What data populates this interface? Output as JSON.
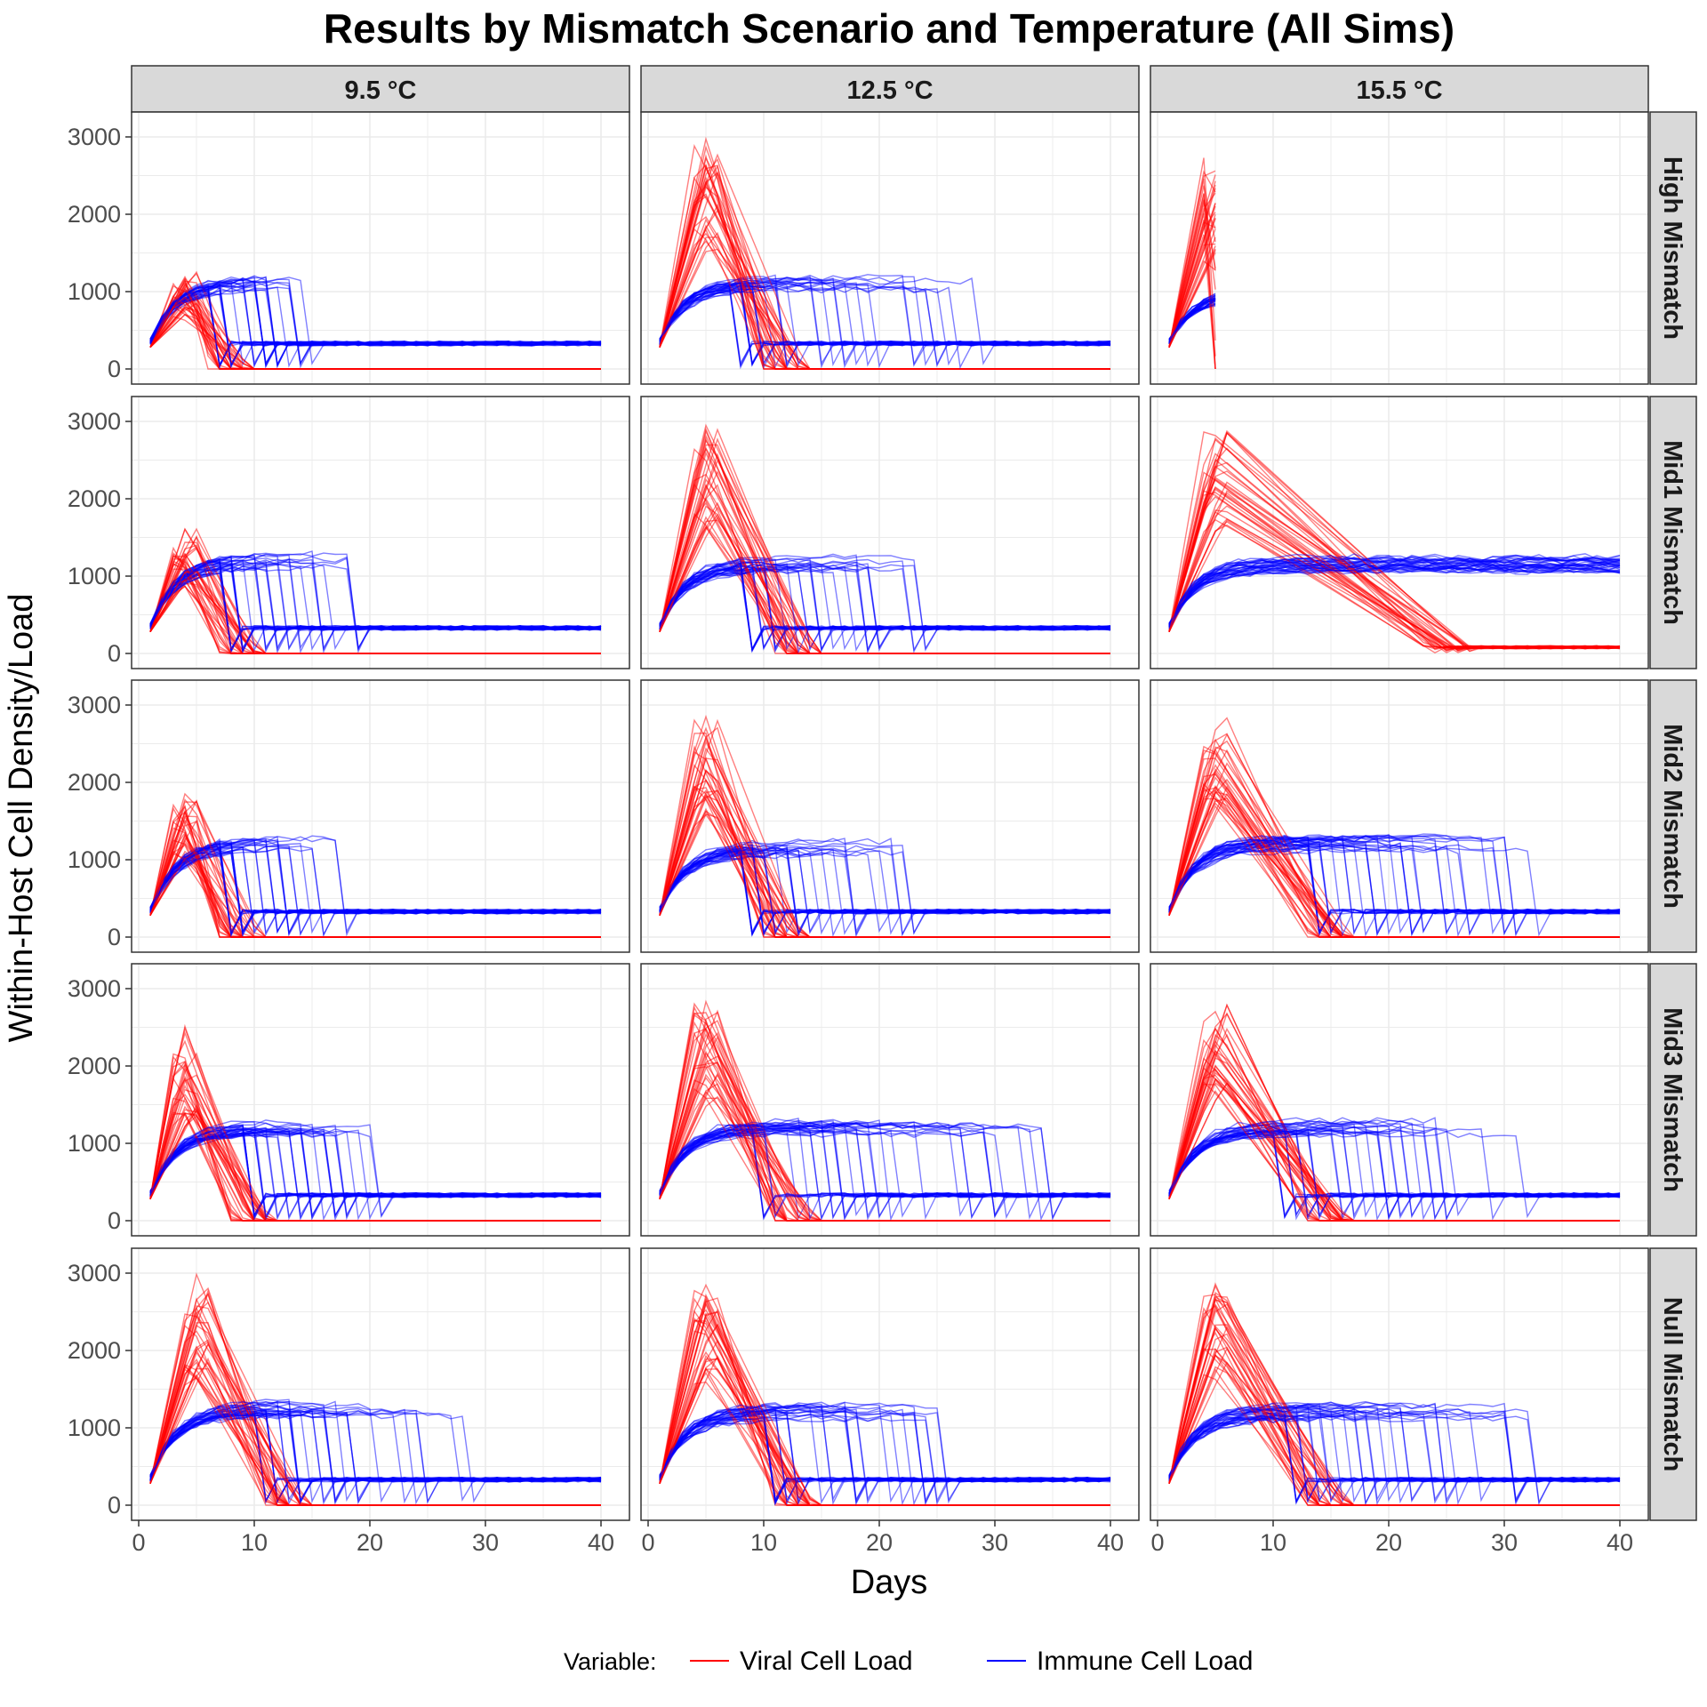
{
  "chart_data": {
    "type": "line",
    "title": "Results by Mismatch Scenario and Temperature (All Sims)",
    "xlabel": "Days",
    "ylabel": "Within-Host Cell Density/Load",
    "xlim": [
      0,
      40
    ],
    "ylim": [
      0,
      3000
    ],
    "x_ticks": [
      "0",
      "10",
      "20",
      "30",
      "40"
    ],
    "y_ticks": [
      "0",
      "1000",
      "2000",
      "3000"
    ],
    "grid": true,
    "legend": {
      "position": "bottom",
      "title": "Variable:",
      "entries": [
        {
          "name": "Viral Cell Load",
          "color": "#ff0000"
        },
        {
          "name": "Immune Cell Load",
          "color": "#0000ff"
        }
      ]
    },
    "columns": [
      "9.5 °C",
      "12.5 °C",
      "15.5 °C"
    ],
    "rows": [
      "High Mismatch",
      "Mid1 Mismatch",
      "Mid2 Mismatch",
      "Mid3 Mismatch",
      "Null Mismatch"
    ],
    "panels": [
      {
        "row": "High Mismatch",
        "col": "9.5 °C",
        "viral_peak": 1300,
        "viral_peak_day": 4,
        "viral_clear_day": 7,
        "immune_peak": 1200,
        "immune_drop_days": [
          6,
          15
        ],
        "immune_baseline": 330,
        "end_day": 40
      },
      {
        "row": "High Mismatch",
        "col": "12.5 °C",
        "viral_peak": 3000,
        "viral_peak_day": 5,
        "viral_clear_day": 11,
        "immune_peak": 1200,
        "immune_drop_days": [
          7,
          30
        ],
        "immune_baseline": 330,
        "end_day": 40
      },
      {
        "row": "High Mismatch",
        "col": "15.5 °C",
        "viral_peak": 3000,
        "viral_peak_day": 5,
        "viral_clear_day": 5,
        "immune_peak": 1100,
        "immune_drop_days": [],
        "immune_baseline": 330,
        "end_day": 5
      },
      {
        "row": "Mid1 Mismatch",
        "col": "9.5 °C",
        "viral_peak": 1650,
        "viral_peak_day": 4,
        "viral_clear_day": 8,
        "immune_peak": 1300,
        "immune_drop_days": [
          7,
          19
        ],
        "immune_baseline": 330,
        "end_day": 40
      },
      {
        "row": "Mid1 Mismatch",
        "col": "12.5 °C",
        "viral_peak": 3000,
        "viral_peak_day": 5,
        "viral_clear_day": 12,
        "immune_peak": 1250,
        "immune_drop_days": [
          8,
          24
        ],
        "immune_baseline": 330,
        "end_day": 40
      },
      {
        "row": "Mid1 Mismatch",
        "col": "15.5 °C",
        "viral_peak": 3000,
        "viral_peak_day": 5,
        "viral_clear_day": 25,
        "immune_peak": 1250,
        "immune_drop_days": [],
        "immune_baseline": 1200,
        "end_day": 40
      },
      {
        "row": "Mid2 Mismatch",
        "col": "9.5 °C",
        "viral_peak": 1950,
        "viral_peak_day": 4,
        "viral_clear_day": 8,
        "immune_peak": 1300,
        "immune_drop_days": [
          7,
          18
        ],
        "immune_baseline": 330,
        "end_day": 40
      },
      {
        "row": "Mid2 Mismatch",
        "col": "12.5 °C",
        "viral_peak": 3000,
        "viral_peak_day": 5,
        "viral_clear_day": 11,
        "immune_peak": 1250,
        "immune_drop_days": [
          8,
          23
        ],
        "immune_baseline": 330,
        "end_day": 40
      },
      {
        "row": "Mid2 Mismatch",
        "col": "15.5 °C",
        "viral_peak": 3000,
        "viral_peak_day": 5,
        "viral_clear_day": 14,
        "immune_peak": 1300,
        "immune_drop_days": [
          13,
          33
        ],
        "immune_baseline": 330,
        "end_day": 40
      },
      {
        "row": "Mid3 Mismatch",
        "col": "9.5 °C",
        "viral_peak": 2550,
        "viral_peak_day": 4,
        "viral_clear_day": 9,
        "immune_peak": 1300,
        "immune_drop_days": [
          9,
          21
        ],
        "immune_baseline": 330,
        "end_day": 40
      },
      {
        "row": "Mid3 Mismatch",
        "col": "12.5 °C",
        "viral_peak": 3000,
        "viral_peak_day": 5,
        "viral_clear_day": 12,
        "immune_peak": 1300,
        "immune_drop_days": [
          9,
          35
        ],
        "immune_baseline": 330,
        "end_day": 40
      },
      {
        "row": "Mid3 Mismatch",
        "col": "15.5 °C",
        "viral_peak": 3000,
        "viral_peak_day": 5,
        "viral_clear_day": 14,
        "immune_peak": 1300,
        "immune_drop_days": [
          10,
          32
        ],
        "immune_baseline": 330,
        "end_day": 40
      },
      {
        "row": "Null Mismatch",
        "col": "9.5 °C",
        "viral_peak": 3000,
        "viral_peak_day": 5,
        "viral_clear_day": 12,
        "immune_peak": 1350,
        "immune_drop_days": [
          10,
          29
        ],
        "immune_baseline": 330,
        "end_day": 40
      },
      {
        "row": "Null Mismatch",
        "col": "12.5 °C",
        "viral_peak": 3000,
        "viral_peak_day": 5,
        "viral_clear_day": 12,
        "immune_peak": 1300,
        "immune_drop_days": [
          10,
          26
        ],
        "immune_baseline": 330,
        "end_day": 40
      },
      {
        "row": "Null Mismatch",
        "col": "15.5 °C",
        "viral_peak": 3000,
        "viral_peak_day": 5,
        "viral_clear_day": 14,
        "immune_peak": 1300,
        "immune_drop_days": [
          11,
          34
        ],
        "immune_baseline": 330,
        "end_day": 40
      }
    ]
  }
}
